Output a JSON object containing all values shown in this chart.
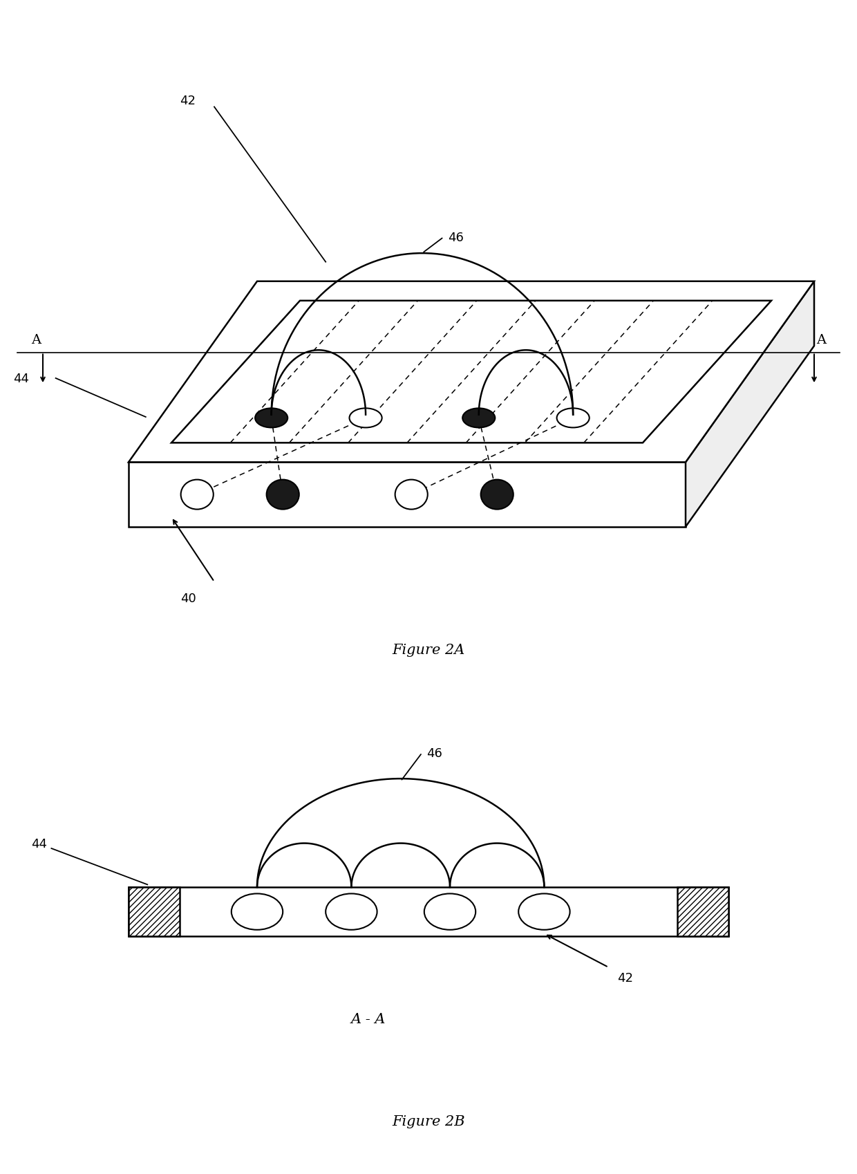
{
  "fig_width": 12.4,
  "fig_height": 16.99,
  "bg_color": "#ffffff",
  "line_color": "#000000",
  "fig2a_title": "Figure 2A",
  "fig2b_title": "Figure 2B",
  "section_label": "A - A",
  "lw": 1.8
}
